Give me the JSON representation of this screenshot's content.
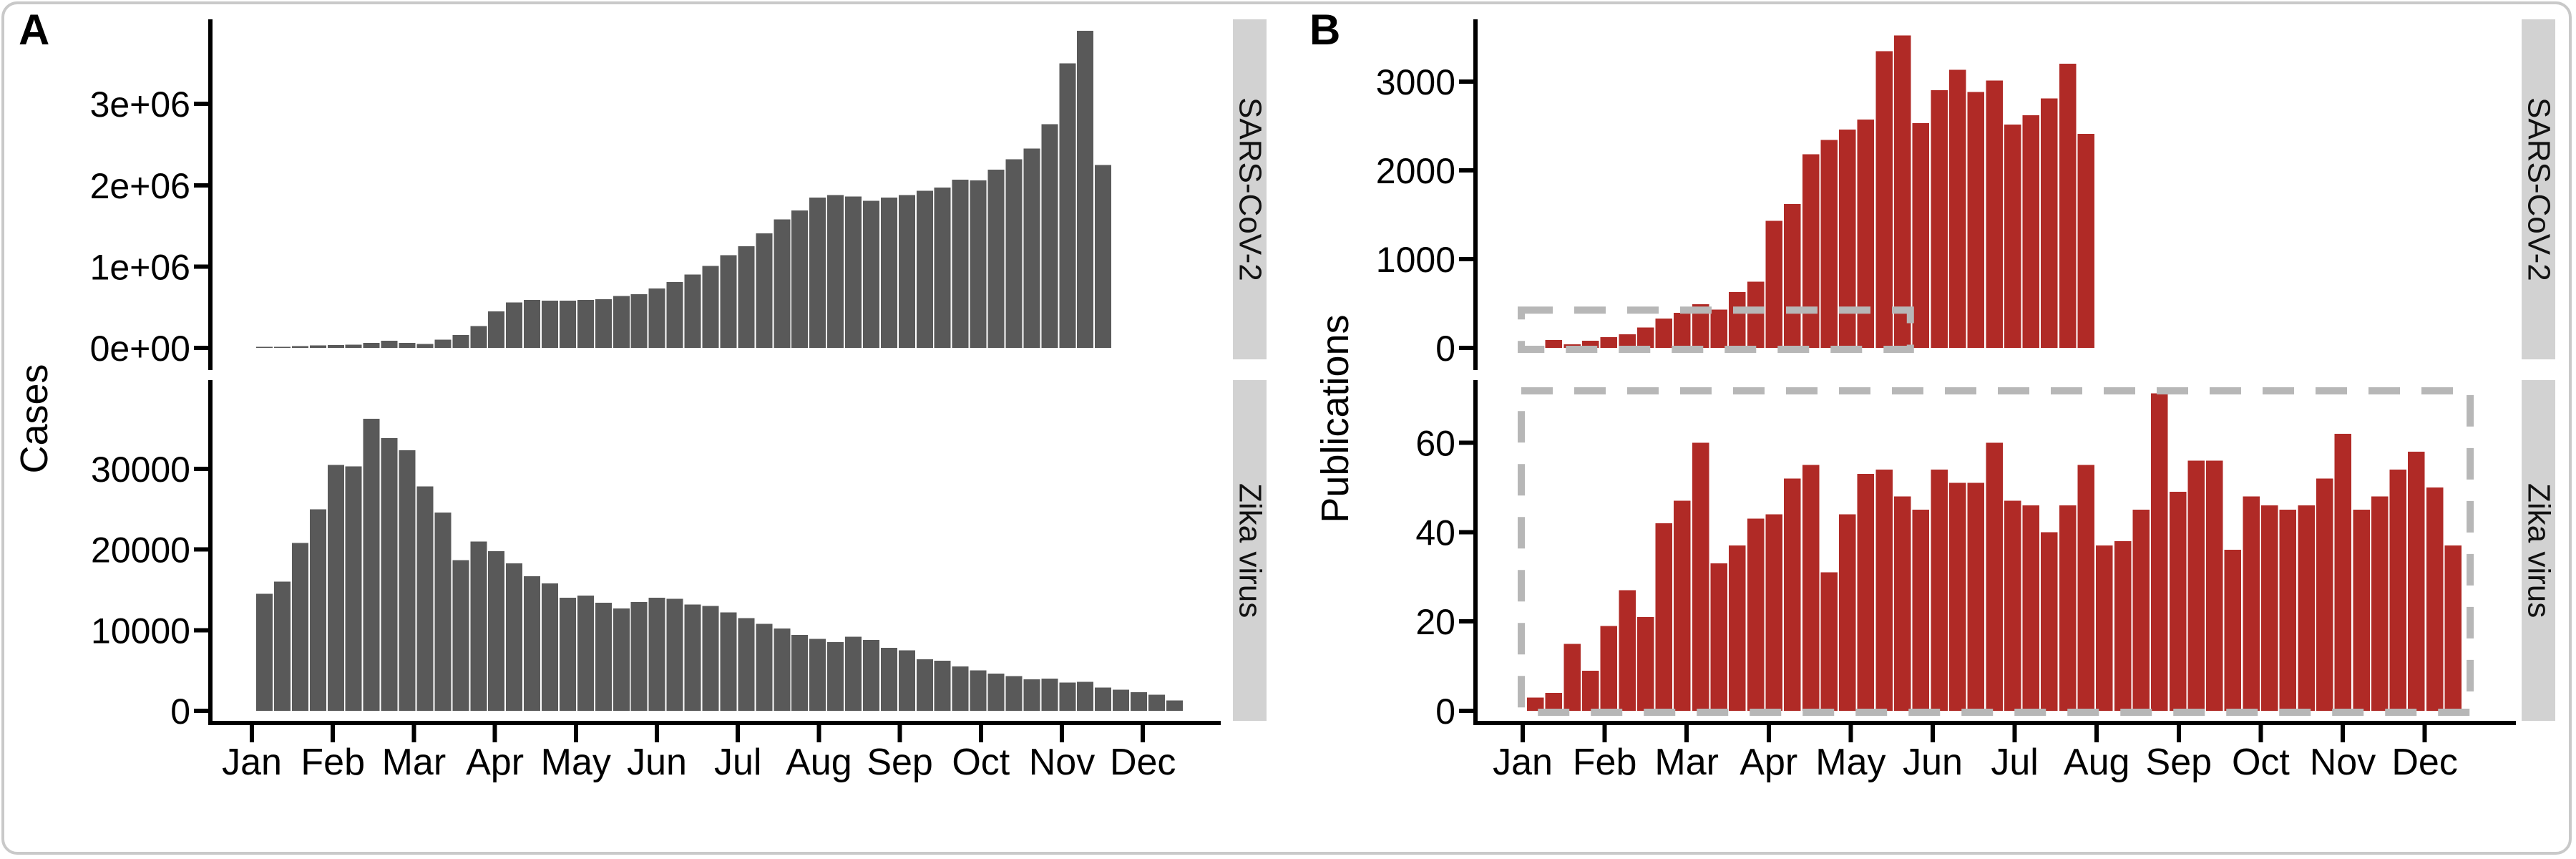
{
  "figure": {
    "background": "#ffffff",
    "border_color": "#c9c9c9",
    "x_axis_months": [
      "Jan",
      "Feb",
      "Mar",
      "Apr",
      "May",
      "Jun",
      "Jul",
      "Aug",
      "Sep",
      "Oct",
      "Nov",
      "Dec"
    ]
  },
  "panels": [
    {
      "letter": "A",
      "y_axis_title": "Cases"
    },
    {
      "letter": "B",
      "y_axis_title": "Publications"
    }
  ],
  "colors": {
    "cases_bar": "#595959",
    "publications_bar": "#b02a26",
    "strip_background": "#d2d2d2",
    "dashed_box": "#b7b7b7",
    "axis": "#000000"
  },
  "chart_data": [
    {
      "panel": "A",
      "virus": "SARS-CoV-2",
      "type": "bar",
      "ylabel": "Cases",
      "x_unit": "week",
      "x_span": "Jan to late Nov",
      "grid": false,
      "legend": false,
      "bar_color": "#595959",
      "ylim": [
        0,
        4040000
      ],
      "yticks": [
        {
          "value": 0,
          "label": "0e+00"
        },
        {
          "value": 1000000,
          "label": "1e+06"
        },
        {
          "value": 2000000,
          "label": "2e+06"
        },
        {
          "value": 3000000,
          "label": "3e+06"
        }
      ],
      "values": [
        5000,
        10000,
        20000,
        30000,
        35000,
        40000,
        60000,
        90000,
        60000,
        50000,
        100000,
        160000,
        270000,
        450000,
        560000,
        590000,
        580000,
        580000,
        590000,
        600000,
        640000,
        660000,
        730000,
        810000,
        900000,
        1010000,
        1140000,
        1250000,
        1410000,
        1580000,
        1690000,
        1850000,
        1880000,
        1860000,
        1810000,
        1850000,
        1880000,
        1930000,
        1970000,
        2070000,
        2060000,
        2190000,
        2320000,
        2450000,
        2750000,
        3500000,
        3900000,
        2250000
      ]
    },
    {
      "panel": "A",
      "virus": "Zika virus",
      "type": "bar",
      "ylabel": "Cases",
      "x_unit": "week",
      "x_span": "Jan to Dec",
      "grid": false,
      "legend": false,
      "bar_color": "#595959",
      "ylim": [
        0,
        41000
      ],
      "yticks": [
        {
          "value": 0,
          "label": "0"
        },
        {
          "value": 10000,
          "label": "10000"
        },
        {
          "value": 20000,
          "label": "20000"
        },
        {
          "value": 30000,
          "label": "30000"
        }
      ],
      "values": [
        14500,
        16000,
        20800,
        25000,
        30500,
        30300,
        36200,
        33800,
        32300,
        27800,
        24600,
        18700,
        21000,
        19800,
        18300,
        16700,
        15800,
        14000,
        14300,
        13400,
        12700,
        13500,
        14000,
        13900,
        13200,
        13000,
        12200,
        11500,
        10800,
        10200,
        9400,
        8900,
        8500,
        9200,
        8800,
        7800,
        7500,
        6400,
        6200,
        5500,
        5000,
        4600,
        4300,
        3900,
        4000,
        3500,
        3600,
        2900,
        2600,
        2300,
        2000,
        1300
      ]
    },
    {
      "panel": "B",
      "virus": "SARS-CoV-2",
      "type": "bar",
      "ylabel": "Publications",
      "x_unit": "week",
      "x_span": "Jan to early Aug",
      "grid": false,
      "legend": false,
      "bar_color": "#b02a26",
      "ylim": [
        0,
        3700
      ],
      "yticks": [
        {
          "value": 0,
          "label": "0"
        },
        {
          "value": 1000,
          "label": "1000"
        },
        {
          "value": 2000,
          "label": "2000"
        },
        {
          "value": 3000,
          "label": "3000"
        }
      ],
      "values": [
        5,
        90,
        40,
        80,
        120,
        155,
        230,
        330,
        395,
        490,
        430,
        630,
        745,
        1430,
        1620,
        2180,
        2340,
        2460,
        2570,
        3340,
        3520,
        2530,
        2900,
        3130,
        2880,
        3010,
        2515,
        2620,
        2810,
        3200,
        2410
      ],
      "highlight_box": {
        "week_start": 0,
        "week_end": 21.2,
        "y_top": 425
      }
    },
    {
      "panel": "B",
      "virus": "Zika virus",
      "type": "bar",
      "ylabel": "Publications",
      "x_unit": "week",
      "x_span": "Jan to Dec",
      "grid": false,
      "legend": false,
      "bar_color": "#b02a26",
      "ylim": [
        0,
        74
      ],
      "yticks": [
        {
          "value": 0,
          "label": "0"
        },
        {
          "value": 20,
          "label": "20"
        },
        {
          "value": 40,
          "label": "40"
        },
        {
          "value": 60,
          "label": "60"
        }
      ],
      "values": [
        3,
        4,
        15,
        9,
        19,
        27,
        21,
        42,
        47,
        60,
        33,
        37,
        43,
        44,
        52,
        55,
        31,
        44,
        53,
        54,
        48,
        45,
        54,
        51,
        51,
        60,
        47,
        46,
        40,
        46,
        55,
        37,
        38,
        45,
        71,
        49,
        56,
        56,
        36,
        48,
        46,
        45,
        46,
        52,
        62,
        45,
        48,
        54,
        58,
        50,
        37
      ],
      "highlight_box": {
        "week_start": 0,
        "week_end": 51.7,
        "y_top": 71.6
      }
    }
  ]
}
